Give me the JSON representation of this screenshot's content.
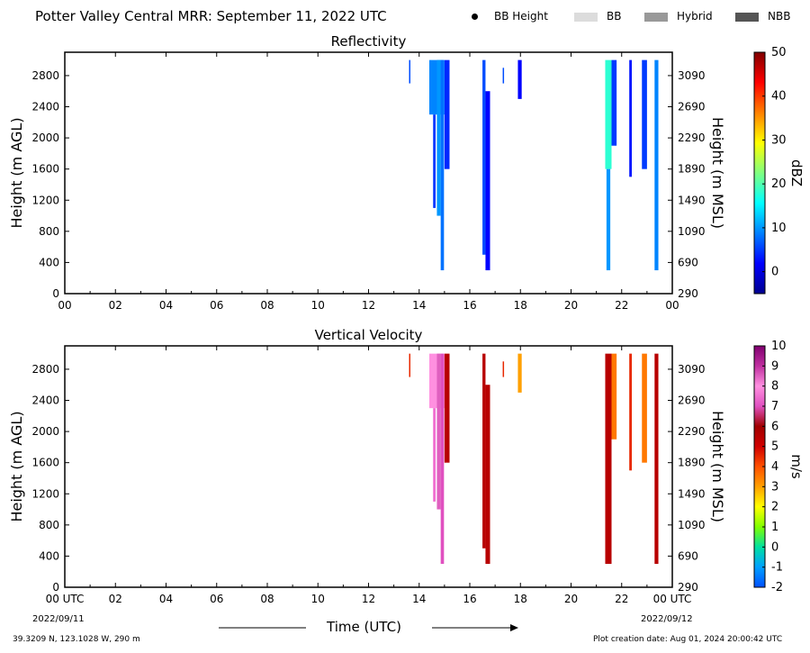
{
  "header": {
    "title": "Potter Valley Central MRR:  September 11, 2022 UTC",
    "legend": [
      {
        "label": "BB Height",
        "kind": "dot",
        "color": "#000000"
      },
      {
        "label": "BB",
        "kind": "swatch",
        "color": "#dcdcdc"
      },
      {
        "label": "Hybrid",
        "kind": "swatch",
        "color": "#999999"
      },
      {
        "label": "NBB",
        "kind": "swatch",
        "color": "#555555"
      }
    ]
  },
  "footer": {
    "location": "39.3209 N, 123.1028 W, 290 m",
    "creation": "Plot creation date: Aug 01, 2024 20:00:42 UTC",
    "start_date": "2022/09/11",
    "end_date": "2022/09/12",
    "xlabel": "Time (UTC)"
  },
  "chart_data": [
    {
      "type": "heatmap",
      "title": "Reflectivity",
      "ylabel": "Height (m AGL)",
      "y2label": "Height (m MSL)",
      "xlim": [
        0,
        24
      ],
      "ylim": [
        0,
        3100
      ],
      "xticks": [
        "00",
        "02",
        "04",
        "06",
        "08",
        "10",
        "12",
        "14",
        "16",
        "18",
        "20",
        "22",
        "00"
      ],
      "yticks": [
        0,
        400,
        800,
        1200,
        1600,
        2000,
        2400,
        2800
      ],
      "y2ticks": [
        290,
        690,
        1090,
        1490,
        1890,
        2290,
        2690,
        3090
      ],
      "colorbar": {
        "label": "dBZ",
        "range": [
          -5,
          50
        ],
        "ticks": [
          0,
          10,
          20,
          30,
          40,
          50
        ],
        "colors": [
          "#00008f",
          "#0000ff",
          "#0080ff",
          "#00ffff",
          "#80ff80",
          "#ffff00",
          "#ff8000",
          "#ff0000",
          "#800000"
        ]
      },
      "echoes": [
        {
          "t0": 13.6,
          "t1": 13.65,
          "h0": 2700,
          "h1": 3000,
          "v": 6
        },
        {
          "t0": 14.4,
          "t1": 15.0,
          "h0": 2300,
          "h1": 3000,
          "v": 9
        },
        {
          "t0": 14.55,
          "t1": 14.65,
          "h0": 1100,
          "h1": 2300,
          "v": 5
        },
        {
          "t0": 14.7,
          "t1": 14.85,
          "h0": 1000,
          "h1": 3000,
          "v": 10
        },
        {
          "t0": 14.85,
          "t1": 14.98,
          "h0": 300,
          "h1": 3000,
          "v": 8
        },
        {
          "t0": 15.0,
          "t1": 15.2,
          "h0": 1600,
          "h1": 3000,
          "v": 4
        },
        {
          "t0": 16.5,
          "t1": 16.62,
          "h0": 500,
          "h1": 3000,
          "v": 6
        },
        {
          "t0": 16.62,
          "t1": 16.8,
          "h0": 300,
          "h1": 2600,
          "v": 2
        },
        {
          "t0": 17.3,
          "t1": 17.35,
          "h0": 2700,
          "h1": 2900,
          "v": 6
        },
        {
          "t0": 17.9,
          "t1": 18.05,
          "h0": 2500,
          "h1": 3000,
          "v": 2
        },
        {
          "t0": 21.35,
          "t1": 21.6,
          "h0": 1600,
          "h1": 3000,
          "v": 18
        },
        {
          "t0": 21.4,
          "t1": 21.55,
          "h0": 300,
          "h1": 1600,
          "v": 10
        },
        {
          "t0": 21.6,
          "t1": 21.8,
          "h0": 1900,
          "h1": 3000,
          "v": 5
        },
        {
          "t0": 22.3,
          "t1": 22.4,
          "h0": 1500,
          "h1": 3000,
          "v": 3
        },
        {
          "t0": 22.8,
          "t1": 23.0,
          "h0": 1600,
          "h1": 3000,
          "v": 5
        },
        {
          "t0": 23.3,
          "t1": 23.45,
          "h0": 300,
          "h1": 3000,
          "v": 9
        }
      ]
    },
    {
      "type": "heatmap",
      "title": "Vertical Velocity",
      "ylabel": "Height (m AGL)",
      "y2label": "Height (m MSL)",
      "xlim": [
        0,
        24
      ],
      "ylim": [
        0,
        3100
      ],
      "xticks": [
        "00 UTC",
        "02",
        "04",
        "06",
        "08",
        "10",
        "12",
        "14",
        "16",
        "18",
        "20",
        "22",
        "00 UTC"
      ],
      "yticks": [
        0,
        400,
        800,
        1200,
        1600,
        2000,
        2400,
        2800
      ],
      "y2ticks": [
        290,
        690,
        1090,
        1490,
        1890,
        2290,
        2690,
        3090
      ],
      "colorbar": {
        "label": "m/s",
        "range": [
          -2,
          10
        ],
        "ticks": [
          -2,
          -1,
          0,
          1,
          2,
          3,
          4,
          5,
          6,
          7,
          8,
          9,
          10
        ],
        "colors": [
          "#0050ff",
          "#00a0ff",
          "#00e0a0",
          "#80ff00",
          "#ffff00",
          "#ffa000",
          "#ff5000",
          "#d00000",
          "#a00000",
          "#e050c0",
          "#ff90e0",
          "#c030a0",
          "#800070"
        ]
      },
      "echoes": [
        {
          "t0": 13.6,
          "t1": 13.65,
          "h0": 2700,
          "h1": 3000,
          "v": 4.5
        },
        {
          "t0": 14.4,
          "t1": 15.0,
          "h0": 2300,
          "h1": 3000,
          "v": 8
        },
        {
          "t0": 14.55,
          "t1": 14.65,
          "h0": 1100,
          "h1": 2300,
          "v": 7.5
        },
        {
          "t0": 14.7,
          "t1": 14.85,
          "h0": 1000,
          "h1": 3000,
          "v": 8.5
        },
        {
          "t0": 14.85,
          "t1": 14.98,
          "h0": 300,
          "h1": 3000,
          "v": 7
        },
        {
          "t0": 15.0,
          "t1": 15.2,
          "h0": 1600,
          "h1": 3000,
          "v": 5.5
        },
        {
          "t0": 16.5,
          "t1": 16.62,
          "h0": 500,
          "h1": 3000,
          "v": 5.5
        },
        {
          "t0": 16.62,
          "t1": 16.8,
          "h0": 300,
          "h1": 2600,
          "v": 5.5
        },
        {
          "t0": 17.3,
          "t1": 17.35,
          "h0": 2700,
          "h1": 2900,
          "v": 4.5
        },
        {
          "t0": 17.9,
          "t1": 18.05,
          "h0": 2500,
          "h1": 3000,
          "v": 3
        },
        {
          "t0": 21.35,
          "t1": 21.6,
          "h0": 300,
          "h1": 3000,
          "v": 5.5
        },
        {
          "t0": 21.6,
          "t1": 21.8,
          "h0": 1900,
          "h1": 3000,
          "v": 3.5
        },
        {
          "t0": 22.3,
          "t1": 22.4,
          "h0": 1500,
          "h1": 3000,
          "v": 4.5
        },
        {
          "t0": 22.8,
          "t1": 23.0,
          "h0": 1600,
          "h1": 3000,
          "v": 3.5
        },
        {
          "t0": 23.3,
          "t1": 23.45,
          "h0": 300,
          "h1": 3000,
          "v": 5.5
        }
      ]
    }
  ]
}
